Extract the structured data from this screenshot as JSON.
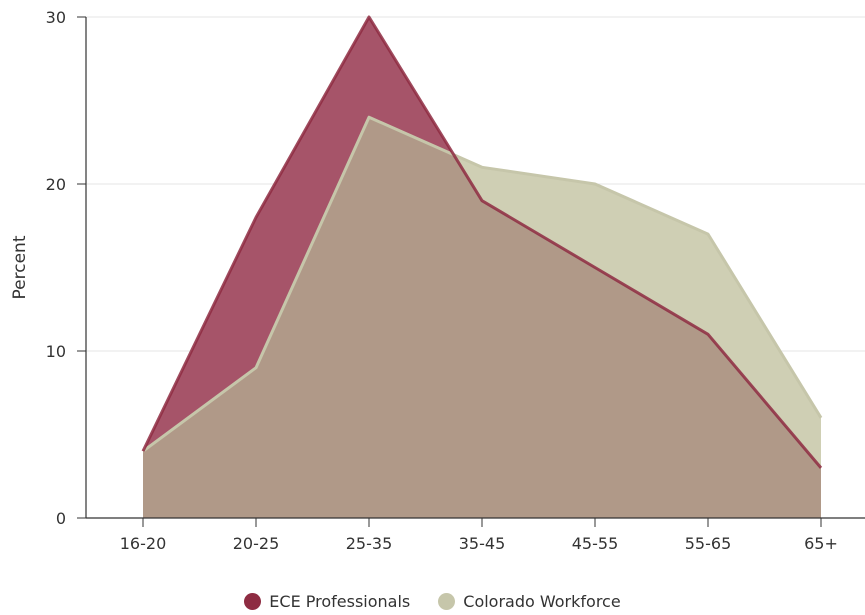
{
  "chart_data": {
    "type": "area",
    "categories": [
      "16-20",
      "20-25",
      "25-35",
      "35-45",
      "45-55",
      "55-65",
      "65+"
    ],
    "ylabel": "Percent",
    "xlabel": "",
    "ylim": [
      0,
      30
    ],
    "yticks": [
      0,
      10,
      20,
      30
    ],
    "grid": true,
    "legend_position": "bottom",
    "series": [
      {
        "name": "ECE Professionals",
        "values": [
          4,
          18,
          30,
          19,
          15,
          11,
          3
        ],
        "color": "#8e2c42",
        "fill": "#a65469"
      },
      {
        "name": "Colorado Workforce",
        "values": [
          4,
          9,
          24,
          21,
          20,
          17,
          6
        ],
        "color": "#c6c6aa",
        "fill": "#cfcfb4"
      }
    ],
    "overlap_fill": "#b09988"
  }
}
